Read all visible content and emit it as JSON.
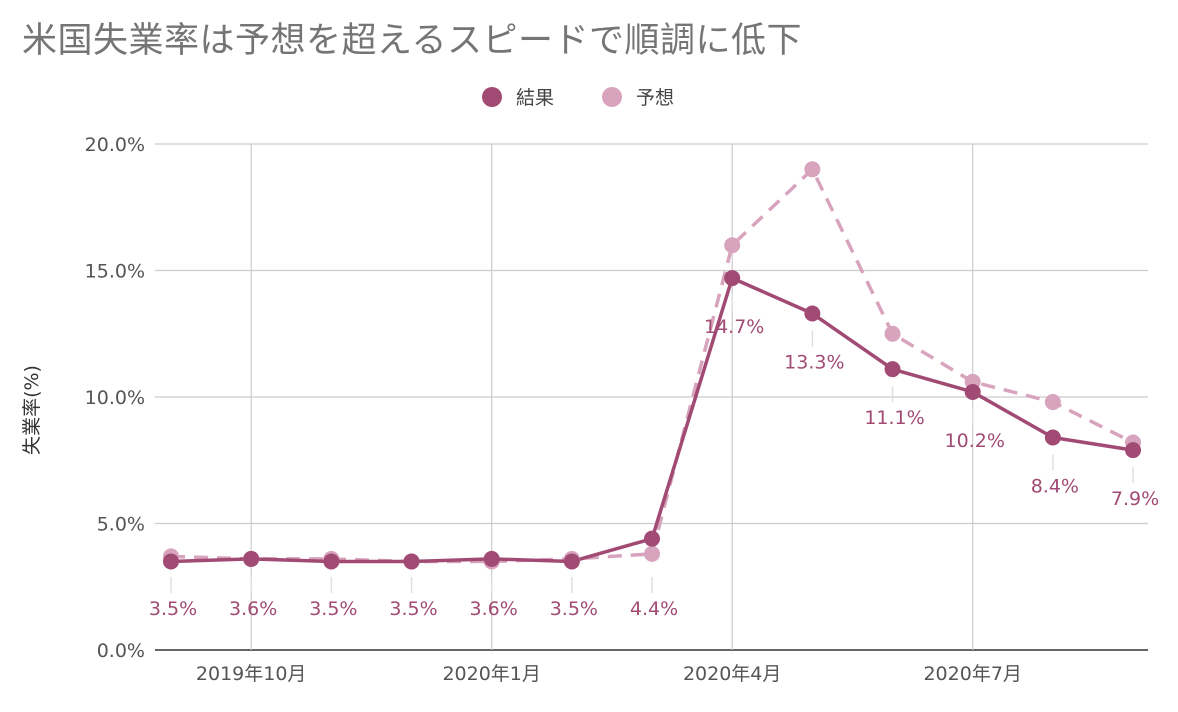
{
  "chart_data": {
    "type": "line",
    "title": "米国失業率は予想を超えるスピードで順調に低下",
    "ylabel": "失業率(%)",
    "xlabel": "",
    "x_ticks": [
      "2019年10月",
      "2020年1月",
      "2020年4月",
      "2020年7月"
    ],
    "x": [
      "2019年9月",
      "2019年10月",
      "2019年11月",
      "2019年12月",
      "2020年1月",
      "2020年2月",
      "2020年3月",
      "2020年4月",
      "2020年5月",
      "2020年6月",
      "2020年7月",
      "2020年8月",
      "2020年9月"
    ],
    "y_ticks": [
      "0.0%",
      "5.0%",
      "10.0%",
      "15.0%",
      "20.0%"
    ],
    "ylim": [
      0,
      20
    ],
    "grid": true,
    "legend_position": "top-center",
    "series": [
      {
        "name": "結果",
        "color": "#a14b74",
        "style": "solid",
        "values": [
          3.5,
          3.6,
          3.5,
          3.5,
          3.6,
          3.5,
          4.4,
          14.7,
          13.3,
          11.1,
          10.2,
          8.4,
          7.9
        ],
        "labels": [
          "3.5%",
          "3.6%",
          "3.5%",
          "3.5%",
          "3.6%",
          "3.5%",
          "4.4%",
          "14.7%",
          "13.3%",
          "11.1%",
          "10.2%",
          "8.4%",
          "7.9%"
        ]
      },
      {
        "name": "予想",
        "color": "#d8a3bd",
        "style": "dashed",
        "values": [
          3.7,
          3.6,
          3.6,
          3.5,
          3.5,
          3.6,
          3.8,
          16.0,
          19.0,
          12.5,
          10.6,
          9.8,
          8.2
        ]
      }
    ]
  }
}
